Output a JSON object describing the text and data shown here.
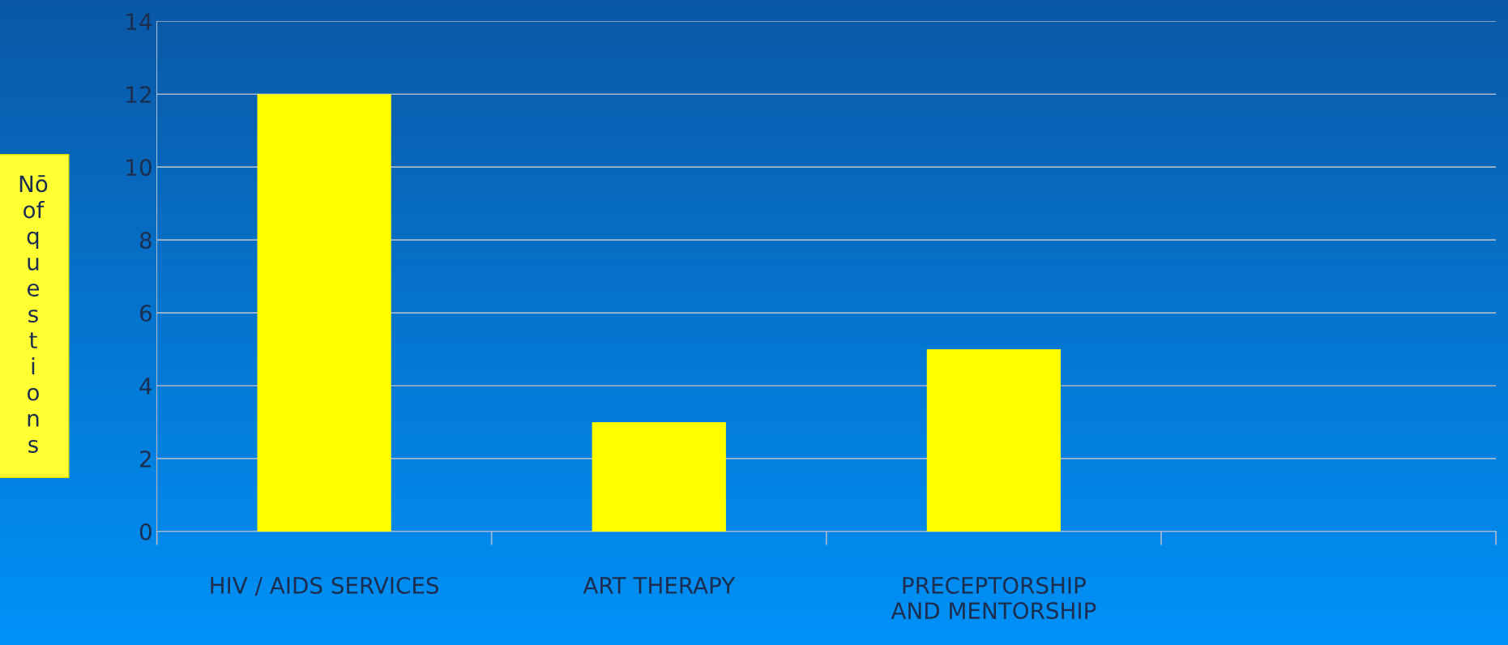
{
  "chart_data": {
    "type": "bar",
    "ylabel": "Nō of questions",
    "categories": [
      "HIV / AIDS SERVICES",
      "ART THERAPY",
      "PRECEPTORSHIP\nAND MENTORSHIP",
      null
    ],
    "series": [
      {
        "color": "#ffff00",
        "values": [
          12,
          3,
          5,
          null
        ]
      }
    ],
    "ylim": [
      0,
      14
    ],
    "yticks": [
      0,
      2,
      4,
      6,
      8,
      10,
      12,
      14
    ],
    "grid": "y",
    "legend": false
  }
}
